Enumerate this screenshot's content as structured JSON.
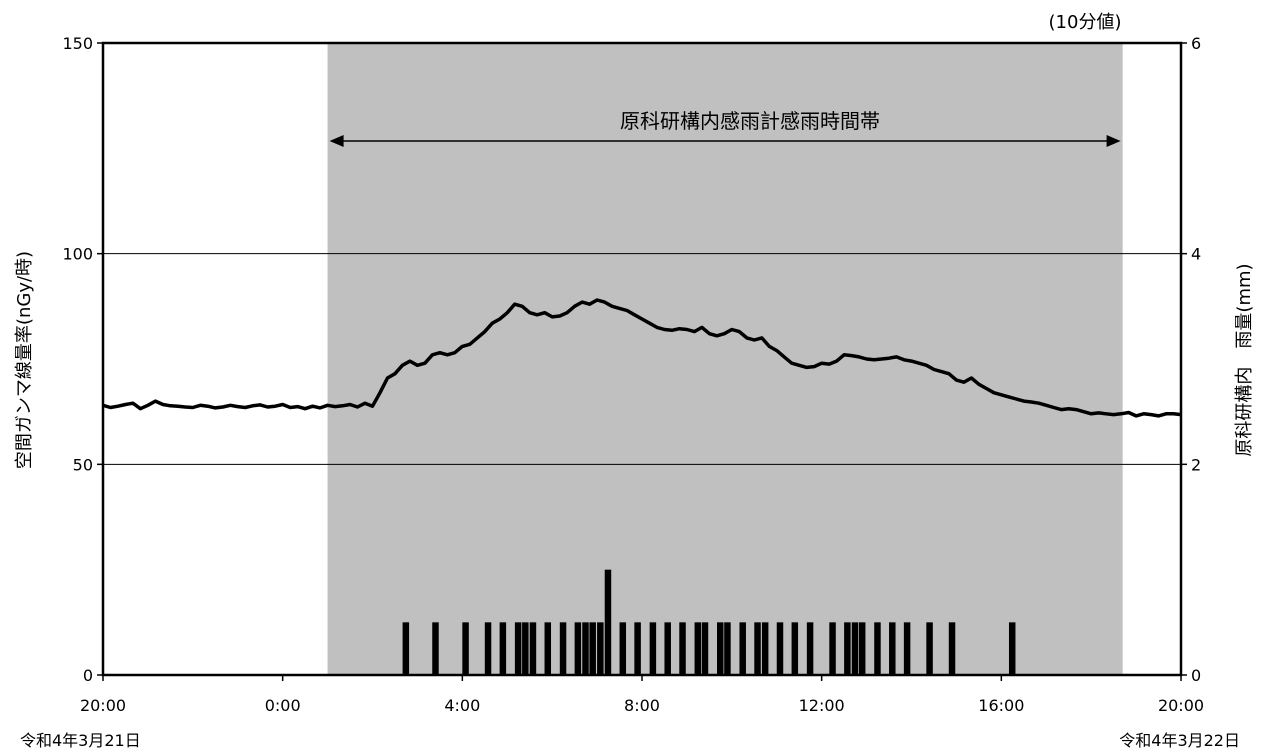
{
  "chart_data": {
    "type": "line",
    "note": "(10分値)",
    "ylabel": "空間ガンマ線量率(nGy/時)",
    "y2label": "原科研構内　雨量(mm)",
    "ylim": [
      0,
      150
    ],
    "yticks": [
      "0",
      "50",
      "100",
      "150"
    ],
    "y2lim": [
      0,
      6
    ],
    "y2ticks": [
      "0",
      "2",
      "4",
      "6"
    ],
    "xlim_hours": [
      0,
      24
    ],
    "xticks": [
      {
        "h": 0,
        "label": "20:00"
      },
      {
        "h": 4,
        "label": "0:00"
      },
      {
        "h": 8,
        "label": "4:00"
      },
      {
        "h": 12,
        "label": "8:00"
      },
      {
        "h": 16,
        "label": "12:00"
      },
      {
        "h": 20,
        "label": "16:00"
      },
      {
        "h": 24,
        "label": "20:00"
      }
    ],
    "date_left": "令和4年3月21日",
    "date_right": "令和4年3月22日",
    "grid": "horizontal",
    "rain_period": {
      "label": "原科研構内感雨計感雨時間帯",
      "start_h": 5.0,
      "end_h": 22.7
    },
    "gamma_series": {
      "name": "",
      "values": [
        64.0,
        63.5,
        63.8,
        64.2,
        64.5,
        63.2,
        64.0,
        65.0,
        64.2,
        63.9,
        63.8,
        63.6,
        63.5,
        64.0,
        63.8,
        63.4,
        63.6,
        64.0,
        63.7,
        63.5,
        63.9,
        64.1,
        63.6,
        63.8,
        64.2,
        63.5,
        63.7,
        63.2,
        63.8,
        63.4,
        64.0,
        63.7,
        63.9,
        64.2,
        63.6,
        64.5,
        63.8,
        67.0,
        70.5,
        71.5,
        73.5,
        74.5,
        73.5,
        74.0,
        76.0,
        76.5,
        76.0,
        76.5,
        78.0,
        78.5,
        80.0,
        81.5,
        83.5,
        84.5,
        86.0,
        88.0,
        87.5,
        86.0,
        85.5,
        86.0,
        85.0,
        85.2,
        86.0,
        87.5,
        88.5,
        88.0,
        89.0,
        88.5,
        87.5,
        87.0,
        86.5,
        85.5,
        84.5,
        83.5,
        82.5,
        82.0,
        81.8,
        82.2,
        82.0,
        81.5,
        82.5,
        81.0,
        80.5,
        81.0,
        82.0,
        81.5,
        80.0,
        79.5,
        80.0,
        78.0,
        77.0,
        75.5,
        74.0,
        73.5,
        73.0,
        73.2,
        74.0,
        73.8,
        74.5,
        76.0,
        75.8,
        75.5,
        75.0,
        74.8,
        75.0,
        75.2,
        75.5,
        74.8,
        74.5,
        74.0,
        73.5,
        72.5,
        72.0,
        71.5,
        70.0,
        69.5,
        70.5,
        69.0,
        68.0,
        67.0,
        66.5,
        66.0,
        65.5,
        65.0,
        64.8,
        64.5,
        64.0,
        63.5,
        63.0,
        63.2,
        63.0,
        62.5,
        62.0,
        62.2,
        62.0,
        61.8,
        62.0,
        62.3,
        61.5,
        62.0,
        61.8,
        61.5,
        62.0,
        62.0,
        61.8
      ]
    },
    "rain_series": {
      "name": "",
      "unit": "mm",
      "bin_hours": 0.16667,
      "bars": [
        {
          "h": 6.67,
          "v": 0.5
        },
        {
          "h": 7.33,
          "v": 0.5
        },
        {
          "h": 8.0,
          "v": 0.5
        },
        {
          "h": 8.5,
          "v": 0.5
        },
        {
          "h": 8.83,
          "v": 0.5
        },
        {
          "h": 9.17,
          "v": 0.5
        },
        {
          "h": 9.33,
          "v": 0.5
        },
        {
          "h": 9.5,
          "v": 0.5
        },
        {
          "h": 9.83,
          "v": 0.5
        },
        {
          "h": 10.17,
          "v": 0.5
        },
        {
          "h": 10.5,
          "v": 0.5
        },
        {
          "h": 10.67,
          "v": 0.5
        },
        {
          "h": 10.83,
          "v": 0.5
        },
        {
          "h": 11.0,
          "v": 0.5
        },
        {
          "h": 11.17,
          "v": 1.0
        },
        {
          "h": 11.5,
          "v": 0.5
        },
        {
          "h": 11.83,
          "v": 0.5
        },
        {
          "h": 12.17,
          "v": 0.5
        },
        {
          "h": 12.5,
          "v": 0.5
        },
        {
          "h": 12.83,
          "v": 0.5
        },
        {
          "h": 13.17,
          "v": 0.5
        },
        {
          "h": 13.33,
          "v": 0.5
        },
        {
          "h": 13.67,
          "v": 0.5
        },
        {
          "h": 13.83,
          "v": 0.5
        },
        {
          "h": 14.17,
          "v": 0.5
        },
        {
          "h": 14.5,
          "v": 0.5
        },
        {
          "h": 14.67,
          "v": 0.5
        },
        {
          "h": 15.0,
          "v": 0.5
        },
        {
          "h": 15.33,
          "v": 0.5
        },
        {
          "h": 15.67,
          "v": 0.5
        },
        {
          "h": 16.17,
          "v": 0.5
        },
        {
          "h": 16.5,
          "v": 0.5
        },
        {
          "h": 16.67,
          "v": 0.5
        },
        {
          "h": 16.83,
          "v": 0.5
        },
        {
          "h": 17.17,
          "v": 0.5
        },
        {
          "h": 17.5,
          "v": 0.5
        },
        {
          "h": 17.83,
          "v": 0.5
        },
        {
          "h": 18.33,
          "v": 0.5
        },
        {
          "h": 18.83,
          "v": 0.5
        },
        {
          "h": 20.17,
          "v": 0.5
        }
      ]
    },
    "colors": {
      "shade": "#c0c0c0",
      "line": "#000000",
      "rain": "#000000",
      "grid": "#000000"
    }
  }
}
